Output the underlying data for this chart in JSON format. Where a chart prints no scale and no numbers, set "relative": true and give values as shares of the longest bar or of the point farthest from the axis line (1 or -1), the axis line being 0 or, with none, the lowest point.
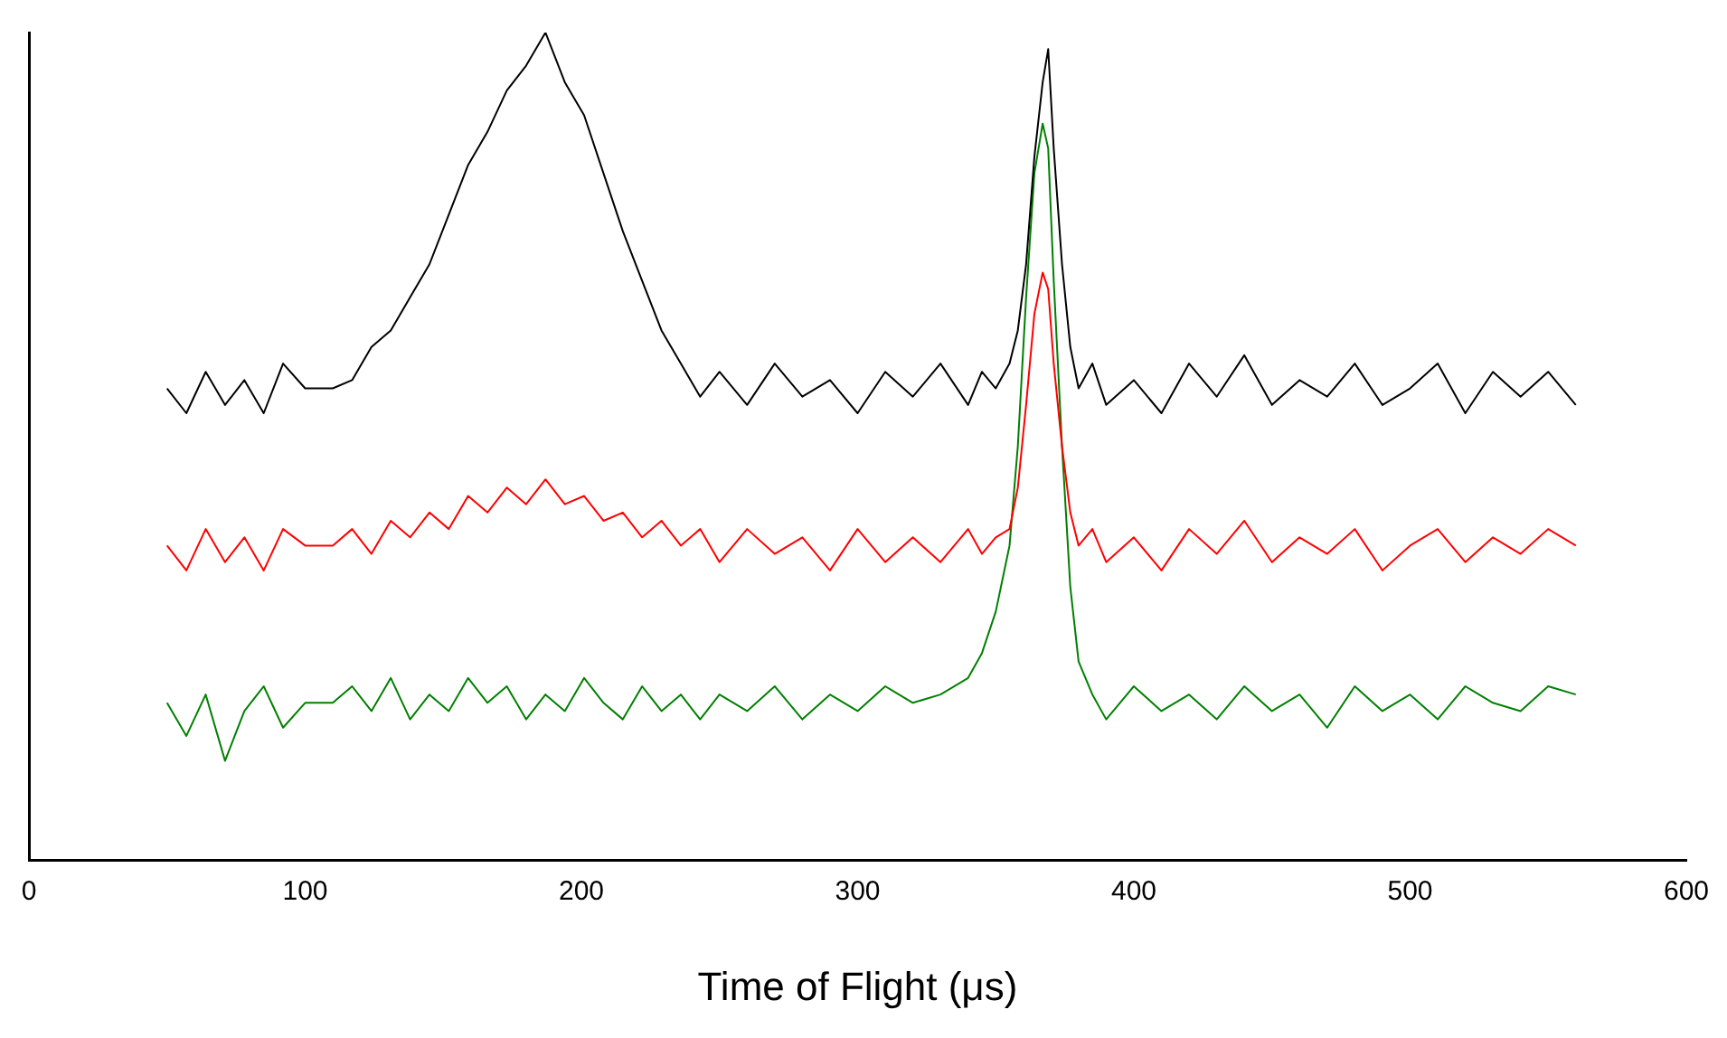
{
  "chart_data": {
    "type": "line",
    "xlabel": "Time of Flight (μs)",
    "relative": true,
    "xlim": [
      0,
      600
    ],
    "xticks": [
      0,
      100,
      200,
      300,
      400,
      500,
      600
    ],
    "grid": false,
    "legend": false,
    "marker": "none",
    "line_style": "solid",
    "x": [
      50,
      57,
      64,
      71,
      78,
      85,
      92,
      100,
      110,
      117,
      124,
      131,
      138,
      145,
      152,
      159,
      166,
      173,
      180,
      187,
      194,
      201,
      208,
      215,
      222,
      229,
      236,
      243,
      250,
      260,
      270,
      280,
      290,
      300,
      310,
      320,
      330,
      340,
      345,
      350,
      355,
      358,
      361,
      364,
      367,
      369,
      371,
      374,
      377,
      380,
      385,
      390,
      400,
      410,
      420,
      430,
      440,
      450,
      460,
      470,
      480,
      490,
      500,
      510,
      520,
      530,
      540,
      550,
      560
    ],
    "series": [
      {
        "color": "#000000",
        "values": [
          0.57,
          0.54,
          0.59,
          0.55,
          0.58,
          0.54,
          0.6,
          0.57,
          0.57,
          0.58,
          0.62,
          0.64,
          0.68,
          0.72,
          0.78,
          0.84,
          0.88,
          0.93,
          0.96,
          1,
          0.94,
          0.9,
          0.83,
          0.76,
          0.7,
          0.64,
          0.6,
          0.56,
          0.59,
          0.55,
          0.6,
          0.56,
          0.58,
          0.54,
          0.59,
          0.56,
          0.6,
          0.55,
          0.59,
          0.57,
          0.6,
          0.64,
          0.72,
          0.85,
          0.94,
          0.98,
          0.86,
          0.72,
          0.62,
          0.57,
          0.6,
          0.55,
          0.58,
          0.54,
          0.6,
          0.56,
          0.61,
          0.55,
          0.58,
          0.56,
          0.6,
          0.55,
          0.57,
          0.6,
          0.54,
          0.59,
          0.56,
          0.59,
          0.55
        ]
      },
      {
        "color": "#ff0000",
        "values": [
          0.38,
          0.35,
          0.4,
          0.36,
          0.39,
          0.35,
          0.4,
          0.38,
          0.38,
          0.4,
          0.37,
          0.41,
          0.39,
          0.42,
          0.4,
          0.44,
          0.42,
          0.45,
          0.43,
          0.46,
          0.43,
          0.44,
          0.41,
          0.42,
          0.39,
          0.41,
          0.38,
          0.4,
          0.36,
          0.4,
          0.37,
          0.39,
          0.35,
          0.4,
          0.36,
          0.39,
          0.36,
          0.4,
          0.37,
          0.39,
          0.4,
          0.45,
          0.55,
          0.66,
          0.71,
          0.69,
          0.6,
          0.5,
          0.42,
          0.38,
          0.4,
          0.36,
          0.39,
          0.35,
          0.4,
          0.37,
          0.41,
          0.36,
          0.39,
          0.37,
          0.4,
          0.35,
          0.38,
          0.4,
          0.36,
          0.39,
          0.37,
          0.4,
          0.38
        ]
      },
      {
        "color": "#008000",
        "values": [
          0.19,
          0.15,
          0.2,
          0.12,
          0.18,
          0.21,
          0.16,
          0.19,
          0.19,
          0.21,
          0.18,
          0.22,
          0.17,
          0.2,
          0.18,
          0.22,
          0.19,
          0.21,
          0.17,
          0.2,
          0.18,
          0.22,
          0.19,
          0.17,
          0.21,
          0.18,
          0.2,
          0.17,
          0.2,
          0.18,
          0.21,
          0.17,
          0.2,
          0.18,
          0.21,
          0.19,
          0.2,
          0.22,
          0.25,
          0.3,
          0.38,
          0.5,
          0.68,
          0.83,
          0.89,
          0.86,
          0.7,
          0.5,
          0.33,
          0.24,
          0.2,
          0.17,
          0.21,
          0.18,
          0.2,
          0.17,
          0.21,
          0.18,
          0.2,
          0.16,
          0.21,
          0.18,
          0.2,
          0.17,
          0.21,
          0.19,
          0.18,
          0.21,
          0.2
        ]
      }
    ]
  }
}
